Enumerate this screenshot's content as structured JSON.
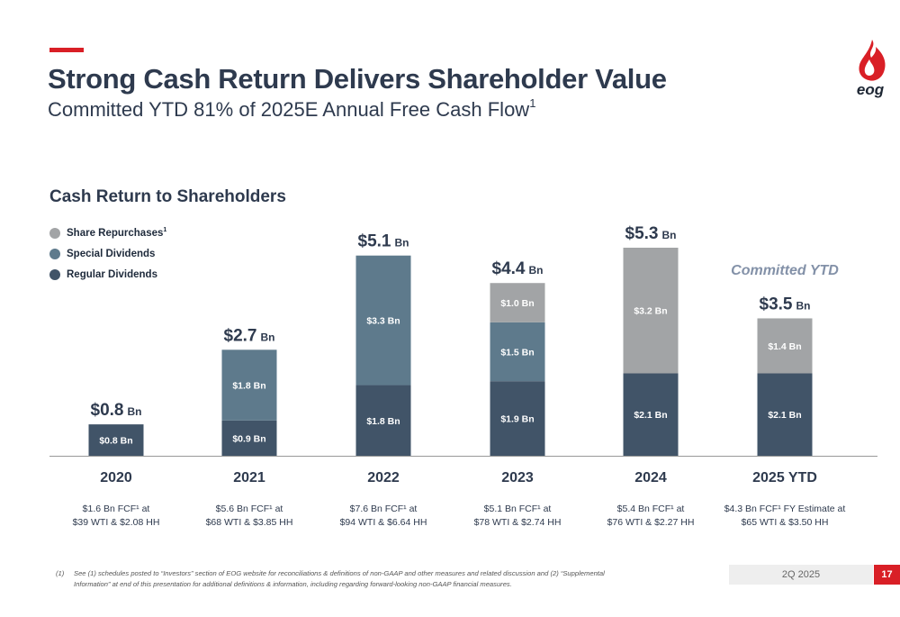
{
  "header": {
    "title": "Strong Cash Return Delivers Shareholder Value",
    "subtitle": "Committed YTD 81% of 2025E Annual Free Cash Flow",
    "subtitle_sup": "1"
  },
  "logo": {
    "text": "eog",
    "icon": "flame-drop-logo",
    "color": "#d91f26"
  },
  "section_title": "Cash Return to Shareholders",
  "legend": [
    {
      "label": "Share Repurchases",
      "sup": "1",
      "color": "#a2a4a6"
    },
    {
      "label": "Special Dividends",
      "color": "#5e7a8c"
    },
    {
      "label": "Regular Dividends",
      "color": "#415468"
    }
  ],
  "chart_data": {
    "type": "bar",
    "stacked": true,
    "categories": [
      "2020",
      "2021",
      "2022",
      "2023",
      "2024",
      "2025 YTD"
    ],
    "series": [
      {
        "name": "Regular Dividends",
        "values": [
          0.8,
          0.9,
          1.8,
          1.9,
          2.1,
          2.1
        ],
        "labels": [
          "$0.8 Bn",
          "$0.9 Bn",
          "$1.8 Bn",
          "$1.9 Bn",
          "$2.1 Bn",
          "$2.1 Bn"
        ],
        "color": "#415468"
      },
      {
        "name": "Special Dividends",
        "values": [
          0,
          1.8,
          3.3,
          1.5,
          0,
          0
        ],
        "labels": [
          "",
          "$1.8 Bn",
          "$3.3 Bn",
          "$1.5 Bn",
          "",
          ""
        ],
        "color": "#5e7a8c"
      },
      {
        "name": "Share Repurchases",
        "values": [
          0,
          0,
          0,
          1.0,
          3.2,
          1.4
        ],
        "labels": [
          "",
          "",
          "",
          "$1.0 Bn",
          "$3.2 Bn",
          "$1.4 Bn"
        ],
        "color": "#a2a4a6"
      }
    ],
    "totals": [
      {
        "value": "$0.8",
        "unit": "Bn"
      },
      {
        "value": "$2.7",
        "unit": "Bn"
      },
      {
        "value": "$5.1",
        "unit": "Bn"
      },
      {
        "value": "$4.4",
        "unit": "Bn"
      },
      {
        "value": "$5.3",
        "unit": "Bn"
      },
      {
        "value": "$3.5",
        "unit": "Bn"
      }
    ],
    "annotation": "Committed YTD",
    "annotation_color": "#8391a8",
    "category_notes": [
      [
        "$1.6 Bn FCF¹ at",
        "$39 WTI & $2.08 HH"
      ],
      [
        "$5.6 Bn FCF¹ at",
        "$68 WTI & $3.85 HH"
      ],
      [
        "$7.6 Bn FCF¹ at",
        "$94 WTI & $6.64 HH"
      ],
      [
        "$5.1 Bn FCF¹ at",
        "$78 WTI & $2.74 HH"
      ],
      [
        "$5.4 Bn FCF¹ at",
        "$76 WTI & $2.27 HH"
      ],
      [
        "$4.3 Bn FCF¹ FY Estimate at",
        "$65 WTI & $3.50 HH"
      ]
    ],
    "ylim": [
      0,
      5.3
    ],
    "grid": false,
    "legend_position": "top-left"
  },
  "footer": {
    "footnote_mark": "(1)",
    "footnote": "See (1) schedules posted to “Investors” section of EOG website for reconciliations & definitions of non-GAAP and other measures and related discussion and (2) “Supplemental Information” at end of this presentation for additional definitions & information, including regarding forward-looking non-GAAP financial measures.",
    "quarter": "2Q 2025",
    "page_number": "17"
  }
}
